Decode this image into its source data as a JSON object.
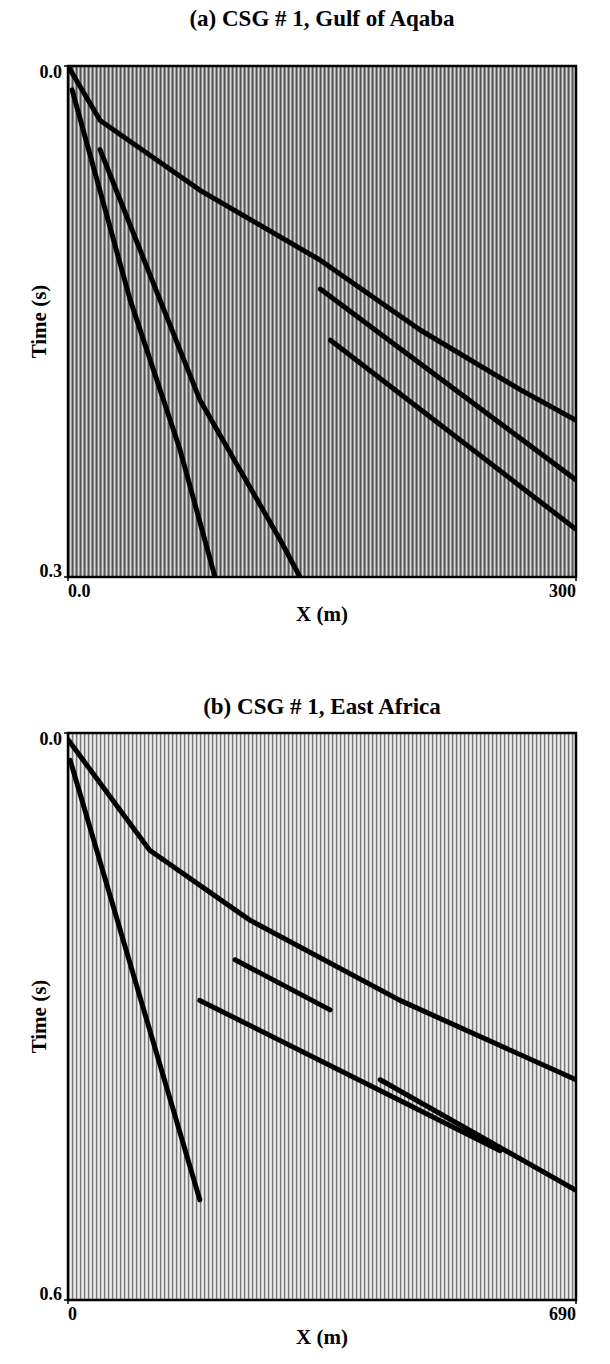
{
  "chart_data": [
    {
      "type": "line",
      "title": "(a) CSG # 1, Gulf of Aqaba",
      "x_label": "X (m)",
      "y_label": "Time (s)",
      "xlim": [
        0,
        300
      ],
      "xticks": [
        {
          "value": 0,
          "label": "0.0"
        },
        300
      ],
      "ylim": [
        0,
        0.3
      ],
      "yticks": [
        {
          "value": 0,
          "label": "0.0"
        },
        0.3
      ],
      "color": "#000000",
      "series": [
        {
          "x": [
            0,
            19,
            78,
            149,
            208,
            267,
            300
          ],
          "values": [
            0,
            0.032,
            0.073,
            0.114,
            0.155,
            0.19,
            0.208
          ]
        },
        {
          "x": [
            2.4,
            36.6,
            66.1,
            86.8
          ],
          "values": [
            0.014,
            0.137,
            0.225,
            0.3
          ]
        },
        {
          "x": [
            18.9,
            77.9,
            125.2,
            137
          ],
          "values": [
            0.049,
            0.196,
            0.278,
            0.3
          ]
        },
        {
          "x": [
            149,
            300
          ],
          "values": [
            0.131,
            0.243
          ]
        },
        {
          "x": [
            155,
            300
          ],
          "values": [
            0.161,
            0.272
          ]
        }
      ]
    },
    {
      "type": "line",
      "title": "(b) CSG # 1, East Africa",
      "x_label": "X (m)",
      "y_label": "Time (s)",
      "xlim": [
        0,
        690
      ],
      "xticks": [
        0,
        690
      ],
      "ylim": [
        0,
        0.6
      ],
      "yticks": [
        {
          "value": 0,
          "label": "0.0"
        },
        0.6
      ],
      "color": "#000000",
      "series": [
        {
          "x": [
            0,
            111,
            247,
            451,
            690
          ],
          "values": [
            0.007,
            0.124,
            0.198,
            0.283,
            0.367
          ]
        },
        {
          "x": [
            3,
            179
          ],
          "values": [
            0.029,
            0.494
          ]
        },
        {
          "x": [
            227,
            356
          ],
          "values": [
            0.24,
            0.293
          ]
        },
        {
          "x": [
            179,
            451,
            587
          ],
          "values": [
            0.283,
            0.389,
            0.442
          ]
        },
        {
          "x": [
            424,
            690
          ],
          "values": [
            0.367,
            0.484
          ]
        }
      ]
    }
  ]
}
